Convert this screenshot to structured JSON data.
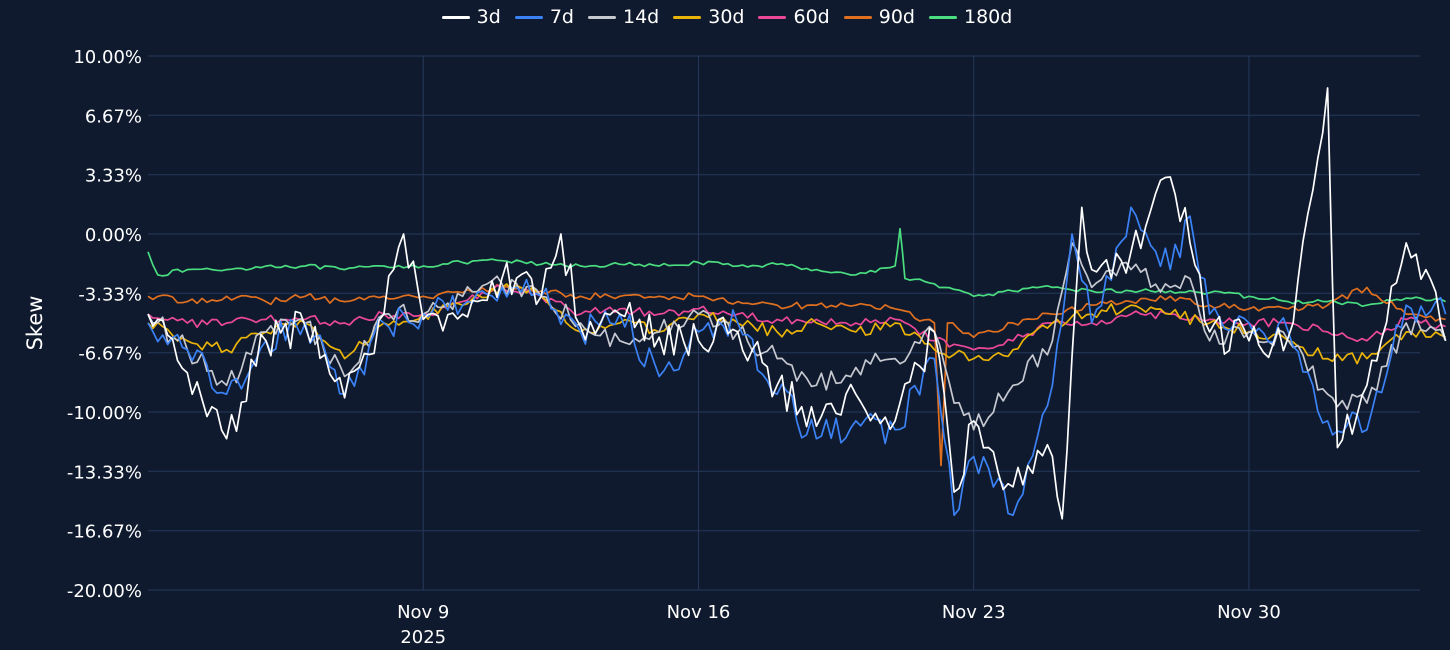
{
  "chart_data": {
    "type": "line",
    "title": "",
    "xlabel": "",
    "ylabel": "Skew",
    "ylim": [
      -20,
      10
    ],
    "y_ticks": [
      "10.00%",
      "6.67%",
      "3.33%",
      "0.00%",
      "-3.33%",
      "-6.67%",
      "-10.00%",
      "-13.33%",
      "-16.67%",
      "-20.00%"
    ],
    "y_tick_values": [
      10,
      6.67,
      3.33,
      0,
      -3.33,
      -6.67,
      -10,
      -13.33,
      -16.67,
      -20
    ],
    "x_range": [
      "2025-11-02",
      "2025-12-04"
    ],
    "x_ticks": [
      {
        "date": "2025-11-09",
        "label": "Nov 9",
        "sublabel": "2025"
      },
      {
        "date": "2025-11-16",
        "label": "Nov 16",
        "sublabel": ""
      },
      {
        "date": "2025-11-23",
        "label": "Nov 23",
        "sublabel": ""
      },
      {
        "date": "2025-11-30",
        "label": "Nov 30",
        "sublabel": ""
      }
    ],
    "grid": true,
    "legend_position": "top-center",
    "series": [
      {
        "name": "3d",
        "color": "#ffffff",
        "points": [
          [
            "2025-11-02",
            -4.5
          ],
          [
            "2025-11-03",
            -7.8
          ],
          [
            "2025-11-04",
            -11.5
          ],
          [
            "2025-11-05",
            -6.0
          ],
          [
            "2025-11-06",
            -5.2
          ],
          [
            "2025-11-07",
            -9.2
          ],
          [
            "2025-11-08",
            -4.5
          ],
          [
            "2025-11-08T12:00",
            0.0
          ],
          [
            "2025-11-09",
            -4.8
          ],
          [
            "2025-11-10",
            -4.5
          ],
          [
            "2025-11-11",
            -2.5
          ],
          [
            "2025-11-12",
            -3.5
          ],
          [
            "2025-11-12T12:00",
            0.0
          ],
          [
            "2025-11-13",
            -5.2
          ],
          [
            "2025-11-14",
            -4.5
          ],
          [
            "2025-11-15",
            -5.8
          ],
          [
            "2025-11-16",
            -6.0
          ],
          [
            "2025-11-17",
            -5.5
          ],
          [
            "2025-11-18",
            -8.5
          ],
          [
            "2025-11-19",
            -10.8
          ],
          [
            "2025-11-20",
            -9.0
          ],
          [
            "2025-11-21",
            -10.5
          ],
          [
            "2025-11-22",
            -5.5
          ],
          [
            "2025-11-22T12:00",
            -14.5
          ],
          [
            "2025-11-23",
            -10.5
          ],
          [
            "2025-11-24",
            -14.2
          ],
          [
            "2025-11-25",
            -12.5
          ],
          [
            "2025-11-25T06:00",
            -16.0
          ],
          [
            "2025-11-25T18:00",
            1.5
          ],
          [
            "2025-11-26",
            -2.0
          ],
          [
            "2025-11-27",
            -1.0
          ],
          [
            "2025-11-28",
            3.2
          ],
          [
            "2025-11-28T12:00",
            -0.5
          ],
          [
            "2025-11-29",
            -5.5
          ],
          [
            "2025-11-30",
            -6.0
          ],
          [
            "2025-12-01",
            -5.8
          ],
          [
            "2025-12-02",
            8.2
          ],
          [
            "2025-12-02T06:00",
            -12.0
          ],
          [
            "2025-12-03",
            -8.5
          ],
          [
            "2025-12-04",
            -0.5
          ],
          [
            "2025-12-04T12:00",
            -2.0
          ],
          [
            "2025-12-05",
            -6.0
          ]
        ]
      },
      {
        "name": "7d",
        "color": "#3b82f6",
        "points": [
          [
            "2025-11-02",
            -5.0
          ],
          [
            "2025-11-03",
            -6.5
          ],
          [
            "2025-11-04",
            -9.0
          ],
          [
            "2025-11-05",
            -6.0
          ],
          [
            "2025-11-06",
            -5.0
          ],
          [
            "2025-11-07",
            -9.0
          ],
          [
            "2025-11-08",
            -5.0
          ],
          [
            "2025-11-09",
            -4.5
          ],
          [
            "2025-11-10",
            -4.0
          ],
          [
            "2025-11-11",
            -3.0
          ],
          [
            "2025-11-12",
            -3.5
          ],
          [
            "2025-11-13",
            -5.5
          ],
          [
            "2025-11-14",
            -4.5
          ],
          [
            "2025-11-15",
            -8.0
          ],
          [
            "2025-11-16",
            -5.5
          ],
          [
            "2025-11-17",
            -5.0
          ],
          [
            "2025-11-18",
            -9.0
          ],
          [
            "2025-11-19",
            -11.5
          ],
          [
            "2025-11-20",
            -10.5
          ],
          [
            "2025-11-21",
            -11.0
          ],
          [
            "2025-11-22",
            -7.0
          ],
          [
            "2025-11-22T12:00",
            -15.8
          ],
          [
            "2025-11-23",
            -12.5
          ],
          [
            "2025-11-24",
            -15.8
          ],
          [
            "2025-11-25",
            -8.5
          ],
          [
            "2025-11-25T12:00",
            0.0
          ],
          [
            "2025-11-26",
            -5.0
          ],
          [
            "2025-11-27",
            1.5
          ],
          [
            "2025-11-28",
            -2.0
          ],
          [
            "2025-11-28T12:00",
            1.0
          ],
          [
            "2025-11-29",
            -4.5
          ],
          [
            "2025-11-30",
            -5.0
          ],
          [
            "2025-12-01",
            -5.5
          ],
          [
            "2025-12-02",
            -10.5
          ],
          [
            "2025-12-03",
            -11.0
          ],
          [
            "2025-12-04",
            -4.0
          ],
          [
            "2025-12-05",
            -4.5
          ]
        ]
      },
      {
        "name": "14d",
        "color": "#c7c9d1",
        "points": [
          [
            "2025-11-02",
            -4.5
          ],
          [
            "2025-11-03",
            -6.5
          ],
          [
            "2025-11-04",
            -8.5
          ],
          [
            "2025-11-05",
            -5.5
          ],
          [
            "2025-11-06",
            -5.0
          ],
          [
            "2025-11-07",
            -8.0
          ],
          [
            "2025-11-08",
            -4.5
          ],
          [
            "2025-11-09",
            -4.5
          ],
          [
            "2025-11-10",
            -3.5
          ],
          [
            "2025-11-11",
            -2.8
          ],
          [
            "2025-11-12",
            -3.5
          ],
          [
            "2025-11-13",
            -5.0
          ],
          [
            "2025-11-14",
            -6.0
          ],
          [
            "2025-11-15",
            -5.5
          ],
          [
            "2025-11-16",
            -4.5
          ],
          [
            "2025-11-17",
            -5.5
          ],
          [
            "2025-11-18",
            -7.0
          ],
          [
            "2025-11-19",
            -8.5
          ],
          [
            "2025-11-20",
            -7.5
          ],
          [
            "2025-11-21",
            -7.0
          ],
          [
            "2025-11-22",
            -5.5
          ],
          [
            "2025-11-22T12:00",
            -9.5
          ],
          [
            "2025-11-23",
            -11.0
          ],
          [
            "2025-11-24",
            -8.5
          ],
          [
            "2025-11-25",
            -6.0
          ],
          [
            "2025-11-25T12:00",
            -0.5
          ],
          [
            "2025-11-26",
            -3.0
          ],
          [
            "2025-11-27",
            -2.0
          ],
          [
            "2025-11-28",
            -3.0
          ],
          [
            "2025-11-28T12:00",
            -2.5
          ],
          [
            "2025-11-29",
            -6.0
          ],
          [
            "2025-11-30",
            -5.5
          ],
          [
            "2025-12-01",
            -6.0
          ],
          [
            "2025-12-02",
            -9.0
          ],
          [
            "2025-12-03",
            -9.5
          ],
          [
            "2025-12-04",
            -5.0
          ],
          [
            "2025-12-05",
            -6.0
          ]
        ]
      },
      {
        "name": "30d",
        "color": "#eab308",
        "points": [
          [
            "2025-11-02",
            -5.0
          ],
          [
            "2025-11-03",
            -6.0
          ],
          [
            "2025-11-04",
            -6.5
          ],
          [
            "2025-11-05",
            -5.5
          ],
          [
            "2025-11-06",
            -5.0
          ],
          [
            "2025-11-07",
            -7.0
          ],
          [
            "2025-11-08",
            -5.0
          ],
          [
            "2025-11-09",
            -4.5
          ],
          [
            "2025-11-10",
            -4.0
          ],
          [
            "2025-11-11",
            -3.0
          ],
          [
            "2025-11-12",
            -3.5
          ],
          [
            "2025-11-13",
            -5.5
          ],
          [
            "2025-11-14",
            -5.0
          ],
          [
            "2025-11-15",
            -5.5
          ],
          [
            "2025-11-16",
            -4.5
          ],
          [
            "2025-11-17",
            -5.0
          ],
          [
            "2025-11-18",
            -5.5
          ],
          [
            "2025-11-19",
            -5.0
          ],
          [
            "2025-11-20",
            -5.5
          ],
          [
            "2025-11-21",
            -5.0
          ],
          [
            "2025-11-22",
            -6.5
          ],
          [
            "2025-11-23",
            -7.0
          ],
          [
            "2025-11-24",
            -6.5
          ],
          [
            "2025-11-25",
            -5.0
          ],
          [
            "2025-11-26",
            -4.5
          ],
          [
            "2025-11-27",
            -4.0
          ],
          [
            "2025-11-28",
            -4.5
          ],
          [
            "2025-11-29",
            -5.0
          ],
          [
            "2025-11-30",
            -5.5
          ],
          [
            "2025-12-01",
            -6.0
          ],
          [
            "2025-12-02",
            -7.0
          ],
          [
            "2025-12-03",
            -7.0
          ],
          [
            "2025-12-04",
            -5.5
          ],
          [
            "2025-12-05",
            -5.8
          ]
        ]
      },
      {
        "name": "60d",
        "color": "#ec4899",
        "points": [
          [
            "2025-11-02",
            -4.5
          ],
          [
            "2025-11-03",
            -5.0
          ],
          [
            "2025-11-04",
            -5.0
          ],
          [
            "2025-11-05",
            -4.8
          ],
          [
            "2025-11-06",
            -4.8
          ],
          [
            "2025-11-07",
            -5.0
          ],
          [
            "2025-11-08",
            -4.5
          ],
          [
            "2025-11-09",
            -4.5
          ],
          [
            "2025-11-10",
            -3.8
          ],
          [
            "2025-11-11",
            -3.0
          ],
          [
            "2025-11-12",
            -3.5
          ],
          [
            "2025-11-13",
            -4.5
          ],
          [
            "2025-11-14",
            -4.2
          ],
          [
            "2025-11-15",
            -4.5
          ],
          [
            "2025-11-16",
            -4.2
          ],
          [
            "2025-11-17",
            -4.5
          ],
          [
            "2025-11-18",
            -4.8
          ],
          [
            "2025-11-19",
            -4.8
          ],
          [
            "2025-11-20",
            -5.0
          ],
          [
            "2025-11-21",
            -4.8
          ],
          [
            "2025-11-22",
            -6.0
          ],
          [
            "2025-11-23",
            -6.5
          ],
          [
            "2025-11-24",
            -6.0
          ],
          [
            "2025-11-25",
            -5.0
          ],
          [
            "2025-11-26",
            -5.0
          ],
          [
            "2025-11-27",
            -4.5
          ],
          [
            "2025-11-28",
            -4.5
          ],
          [
            "2025-11-29",
            -4.8
          ],
          [
            "2025-11-30",
            -5.0
          ],
          [
            "2025-12-01",
            -5.0
          ],
          [
            "2025-12-02",
            -5.5
          ],
          [
            "2025-12-03",
            -6.0
          ],
          [
            "2025-12-04",
            -4.8
          ],
          [
            "2025-12-05",
            -5.2
          ]
        ]
      },
      {
        "name": "90d",
        "color": "#e07020",
        "points": [
          [
            "2025-11-02",
            -3.5
          ],
          [
            "2025-11-03",
            -3.8
          ],
          [
            "2025-11-04",
            -3.5
          ],
          [
            "2025-11-05",
            -3.8
          ],
          [
            "2025-11-06",
            -3.5
          ],
          [
            "2025-11-07",
            -3.8
          ],
          [
            "2025-11-08",
            -3.5
          ],
          [
            "2025-11-09",
            -3.5
          ],
          [
            "2025-11-10",
            -3.3
          ],
          [
            "2025-11-11",
            -3.0
          ],
          [
            "2025-11-12",
            -3.2
          ],
          [
            "2025-11-13",
            -3.5
          ],
          [
            "2025-11-14",
            -3.5
          ],
          [
            "2025-11-15",
            -3.5
          ],
          [
            "2025-11-16",
            -3.5
          ],
          [
            "2025-11-17",
            -3.8
          ],
          [
            "2025-11-18",
            -4.0
          ],
          [
            "2025-11-19",
            -4.0
          ],
          [
            "2025-11-20",
            -4.0
          ],
          [
            "2025-11-21",
            -4.2
          ],
          [
            "2025-11-22",
            -5.0
          ],
          [
            "2025-11-22T04:00",
            -13.0
          ],
          [
            "2025-11-22T08:00",
            -5.0
          ],
          [
            "2025-11-23",
            -5.8
          ],
          [
            "2025-11-24",
            -5.0
          ],
          [
            "2025-11-25",
            -4.5
          ],
          [
            "2025-11-26",
            -4.0
          ],
          [
            "2025-11-27",
            -3.8
          ],
          [
            "2025-11-28",
            -3.5
          ],
          [
            "2025-11-29",
            -4.0
          ],
          [
            "2025-11-30",
            -4.2
          ],
          [
            "2025-12-01",
            -4.2
          ],
          [
            "2025-12-02",
            -4.0
          ],
          [
            "2025-12-03",
            -3.0
          ],
          [
            "2025-12-04",
            -4.5
          ],
          [
            "2025-12-05",
            -4.8
          ]
        ]
      },
      {
        "name": "180d",
        "color": "#4ade80",
        "points": [
          [
            "2025-11-02",
            -1.0
          ],
          [
            "2025-11-02T06:00",
            -2.3
          ],
          [
            "2025-11-03",
            -2.0
          ],
          [
            "2025-11-04",
            -2.0
          ],
          [
            "2025-11-05",
            -1.8
          ],
          [
            "2025-11-06",
            -1.8
          ],
          [
            "2025-11-07",
            -2.0
          ],
          [
            "2025-11-08",
            -1.8
          ],
          [
            "2025-11-09",
            -1.8
          ],
          [
            "2025-11-10",
            -1.6
          ],
          [
            "2025-11-11",
            -1.5
          ],
          [
            "2025-11-12",
            -1.7
          ],
          [
            "2025-11-13",
            -1.8
          ],
          [
            "2025-11-14",
            -1.7
          ],
          [
            "2025-11-15",
            -1.8
          ],
          [
            "2025-11-16",
            -1.6
          ],
          [
            "2025-11-17",
            -1.8
          ],
          [
            "2025-11-18",
            -1.7
          ],
          [
            "2025-11-19",
            -2.0
          ],
          [
            "2025-11-20",
            -2.3
          ],
          [
            "2025-11-21",
            -1.8
          ],
          [
            "2025-11-21T03:00",
            0.3
          ],
          [
            "2025-11-21T06:00",
            -2.5
          ],
          [
            "2025-11-22",
            -2.8
          ],
          [
            "2025-11-23",
            -3.5
          ],
          [
            "2025-11-24",
            -3.2
          ],
          [
            "2025-11-25",
            -3.0
          ],
          [
            "2025-11-26",
            -3.2
          ],
          [
            "2025-11-27",
            -3.2
          ],
          [
            "2025-11-28",
            -3.2
          ],
          [
            "2025-11-29",
            -3.3
          ],
          [
            "2025-11-30",
            -3.5
          ],
          [
            "2025-12-01",
            -3.8
          ],
          [
            "2025-12-02",
            -3.8
          ],
          [
            "2025-12-03",
            -4.0
          ],
          [
            "2025-12-04",
            -3.6
          ],
          [
            "2025-12-05",
            -3.8
          ]
        ]
      }
    ]
  }
}
